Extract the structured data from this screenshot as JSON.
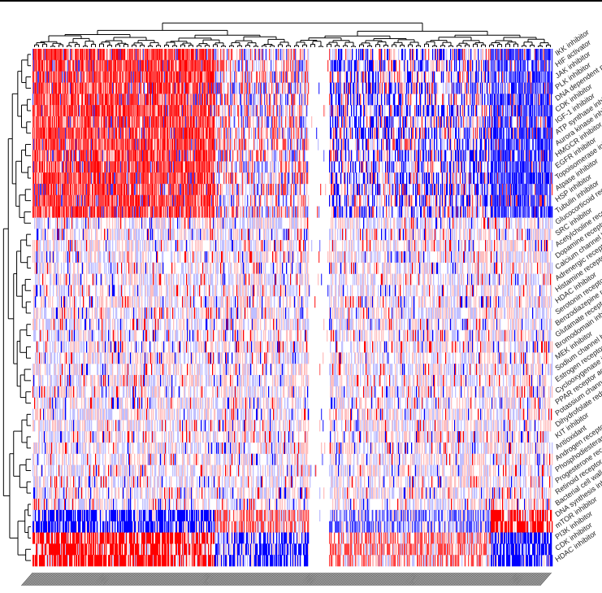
{
  "chart_data": {
    "type": "heatmap",
    "title": "",
    "xlabel": "",
    "ylabel": "",
    "color_scale": {
      "low": "#0000ff",
      "mid": "#ffffff",
      "high": "#ff0000",
      "range": [
        -1,
        1
      ]
    },
    "rows": [
      "IKK inhibitor",
      "HIF activator",
      "JAK inhibitor",
      "PLK inhibitor",
      "DNA dependent protein kinase inhibitor",
      "CDK inhibitor",
      "IGF-1 inhibitor",
      "ATP synthase inhibitor",
      "Aurora kinase inhibitor",
      "HMGCR inhibitor",
      "EGFR inhibitor",
      "Topoisomerase inhibitor",
      "Atpase inhibitor",
      "HSP inhibitor",
      "Tubulin inhibitor",
      "Glucocorticoid receptor agonist",
      "SRC inhibitor",
      "Acetylcholine receptor antagonist",
      "Dopamine receptor antagonist",
      "Calcium channel blocker",
      "Adrenergic receptor antagonist",
      "Histamine receptor antagonist",
      "HDAC inhibitor",
      "Serotonin receptor antagonist",
      "Benzodiazepine receptor agonist",
      "Glutamate receptor antagonist",
      "Bromodomain inhibitor",
      "MEK inhibitor",
      "Sodium channel blocker",
      "Estrogen receptor agonist",
      "Cyclooxygenase inhibitor",
      "PPAR receptor agonist",
      "Potassium channel blocker",
      "Dihydrofolate reductase inhibitor",
      "KIT inhibitor",
      "Antioxidant",
      "Androgen receptor antagonist",
      "Phosphodiesterase inhibitor",
      "Progesterone receptor agonist",
      "Retinoid receptor agonist",
      "Bacterial cell wall synthesis inhibitor",
      "DNA synthesis inhibitor",
      "mTOR inhibitor",
      "PI3K inhibitor",
      "CDK inhibitor",
      "HDAC inhibitor"
    ],
    "column_count": 640,
    "row_clusters": [
      {
        "rows": [
          0,
          14
        ],
        "pattern": "left block strongly positive, right block strongly negative"
      },
      {
        "rows": [
          15,
          40
        ],
        "pattern": "weak mixed values, mostly near zero"
      },
      {
        "rows": [
          41,
          45
        ],
        "pattern": "strong contrasting blocks, negative column blocks on left and right"
      }
    ],
    "column_dendrogram": true,
    "row_dendrogram": true,
    "legend": "none"
  }
}
